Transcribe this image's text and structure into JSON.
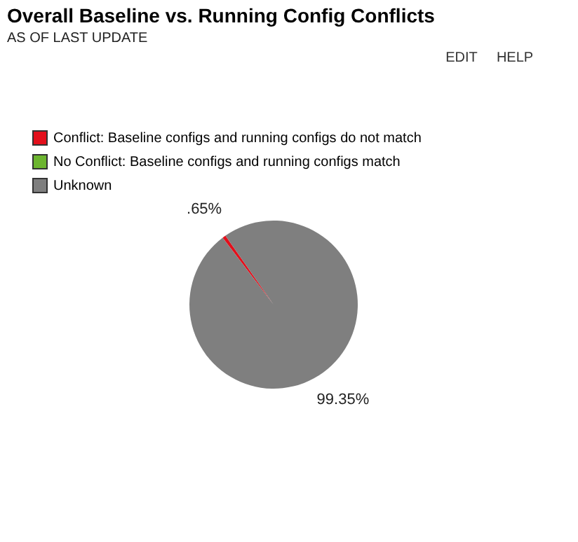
{
  "chart_data": {
    "type": "pie",
    "title": "Overall Baseline vs. Running Config Conflicts",
    "subtitle": "AS OF LAST UPDATE",
    "categories": [
      "Conflict: Baseline configs and running configs do not match",
      "No Conflict: Baseline configs and running configs match",
      "Unknown"
    ],
    "values": [
      0.65,
      0,
      99.35
    ],
    "colors": [
      "#e3101c",
      "#6cb52f",
      "#7f7f7f"
    ],
    "value_labels": [
      ".65%",
      null,
      "99.35%"
    ],
    "annotations": [
      "EDIT",
      "HELP"
    ],
    "legend": "top left"
  }
}
